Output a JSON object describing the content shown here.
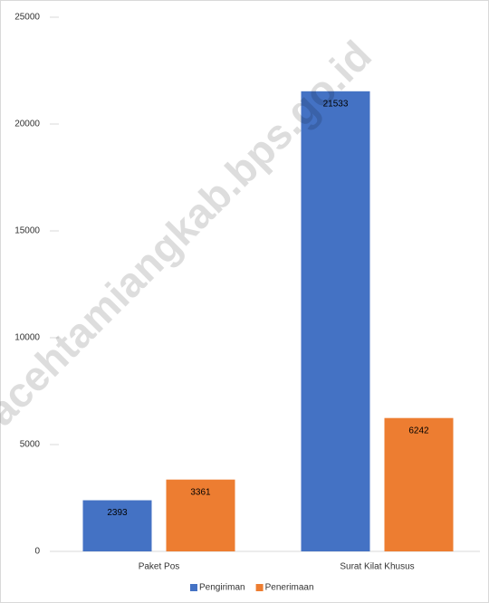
{
  "chart_data": {
    "type": "bar",
    "categories": [
      "Paket Pos",
      "Surat Kilat Khusus"
    ],
    "series": [
      {
        "name": "Pengiriman",
        "color": "#4472c4",
        "values": [
          2393,
          21533
        ]
      },
      {
        "name": "Penerimaan",
        "color": "#ed7d31",
        "values": [
          3361,
          6242
        ]
      }
    ],
    "ylim": [
      0,
      25000
    ],
    "yticks": [
      0,
      5000,
      10000,
      15000,
      20000,
      25000
    ],
    "legend": "bottom",
    "watermark": "acehtamiangkab.bps.go.id"
  }
}
